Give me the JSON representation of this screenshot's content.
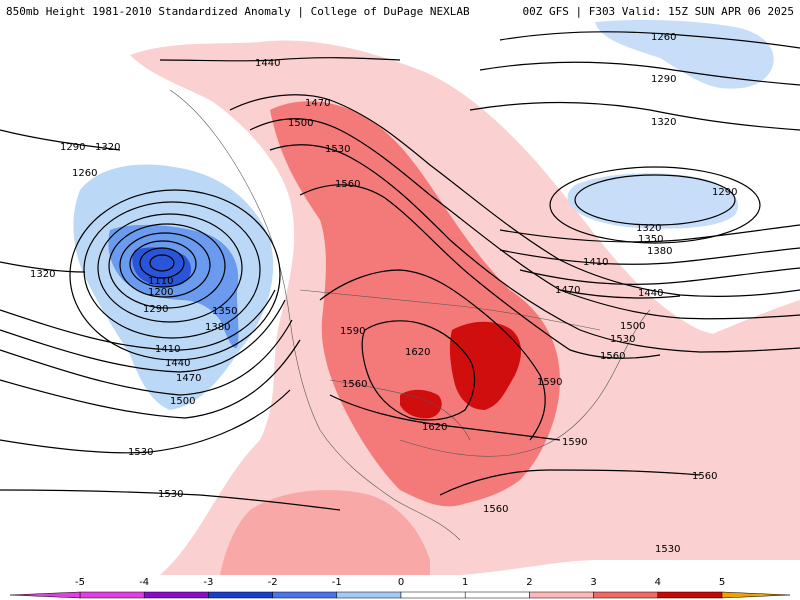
{
  "header": {
    "left_title": "850mb Height 1981-2010 Standardized Anomaly | College of DuPage NEXLAB",
    "right_title": "00Z GFS | F303 Valid: 15Z SUN APR 06 2025"
  },
  "colorbar": {
    "ticks": [
      "-5",
      "-4",
      "-3",
      "-2",
      "-1",
      "0",
      "1",
      "2",
      "3",
      "4",
      "5"
    ],
    "colors": [
      "#e040e0",
      "#8a0ac8",
      "#1a3ec8",
      "#4a74e8",
      "#a8c8f4",
      "#ffffff",
      "#ffffff",
      "#fbb8b8",
      "#f06868",
      "#c80808",
      "#f0a000"
    ]
  },
  "contour_labels": [
    {
      "text": "1440"
    },
    {
      "text": "1470"
    },
    {
      "text": "1500"
    },
    {
      "text": "1530"
    },
    {
      "text": "1560"
    },
    {
      "text": "1290"
    },
    {
      "text": "1320"
    },
    {
      "text": "1260"
    },
    {
      "text": "1110"
    },
    {
      "text": "1200"
    },
    {
      "text": "1290"
    },
    {
      "text": "1350"
    },
    {
      "text": "1380"
    },
    {
      "text": "1410"
    },
    {
      "text": "1440"
    },
    {
      "text": "1470"
    },
    {
      "text": "1500"
    },
    {
      "text": "1320"
    },
    {
      "text": "1530"
    },
    {
      "text": "1530"
    },
    {
      "text": "1590"
    },
    {
      "text": "1620"
    },
    {
      "text": "1560"
    },
    {
      "text": "1620"
    },
    {
      "text": "1560"
    },
    {
      "text": "1260"
    },
    {
      "text": "1290"
    },
    {
      "text": "1320"
    },
    {
      "text": "1290"
    },
    {
      "text": "1320"
    },
    {
      "text": "1350"
    },
    {
      "text": "1380"
    },
    {
      "text": "1410"
    },
    {
      "text": "1470"
    },
    {
      "text": "1440"
    },
    {
      "text": "1500"
    },
    {
      "text": "1530"
    },
    {
      "text": "1560"
    },
    {
      "text": "1590"
    },
    {
      "text": "1590"
    },
    {
      "text": "1560"
    },
    {
      "text": "1530"
    }
  ]
}
